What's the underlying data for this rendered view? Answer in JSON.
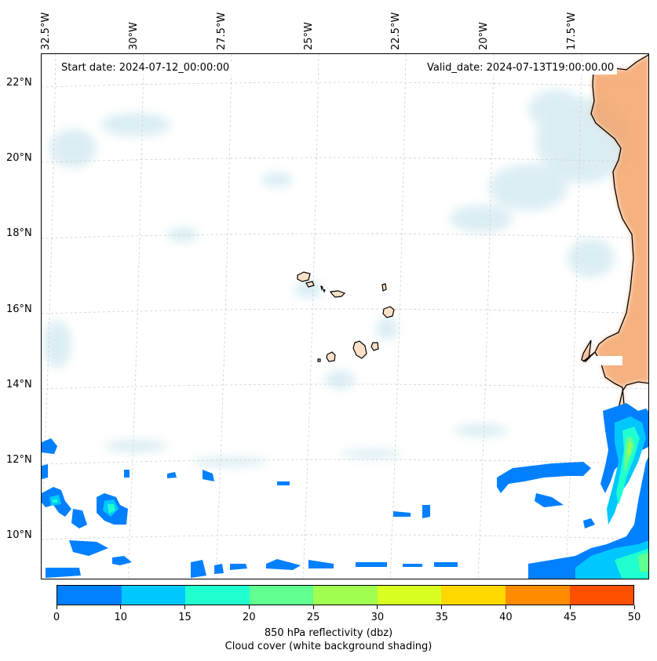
{
  "map": {
    "start_date": "Start date: 2024-07-12_00:00:00",
    "valid_date": "Valid_date: 2024-07-13T19:00:00.00",
    "longitude_labels": [
      "32.5°W",
      "30°W",
      "27.5°W",
      "25°W",
      "22.5°W",
      "20°W",
      "17.5°W"
    ],
    "latitude_labels": [
      "22°N",
      "20°N",
      "18°N",
      "16°N",
      "14°N",
      "12°N",
      "10°N"
    ],
    "gridlines": "dashed",
    "colors": {
      "land": "#f4a46b",
      "cloud_shading": "#bfe0ea",
      "coastline": "#000000"
    }
  },
  "colorbar": {
    "ticks": [
      "0",
      "10",
      "15",
      "20",
      "25",
      "30",
      "35",
      "40",
      "45",
      "50"
    ],
    "colors": [
      "#0080ff",
      "#00c8ff",
      "#20ffd0",
      "#60ff90",
      "#a0ff50",
      "#d8ff20",
      "#ffd800",
      "#ff8c00",
      "#ff5000"
    ],
    "label": "850 hPa reflectivity (dbz)",
    "sublabel": "Cloud cover (white background shading)"
  }
}
